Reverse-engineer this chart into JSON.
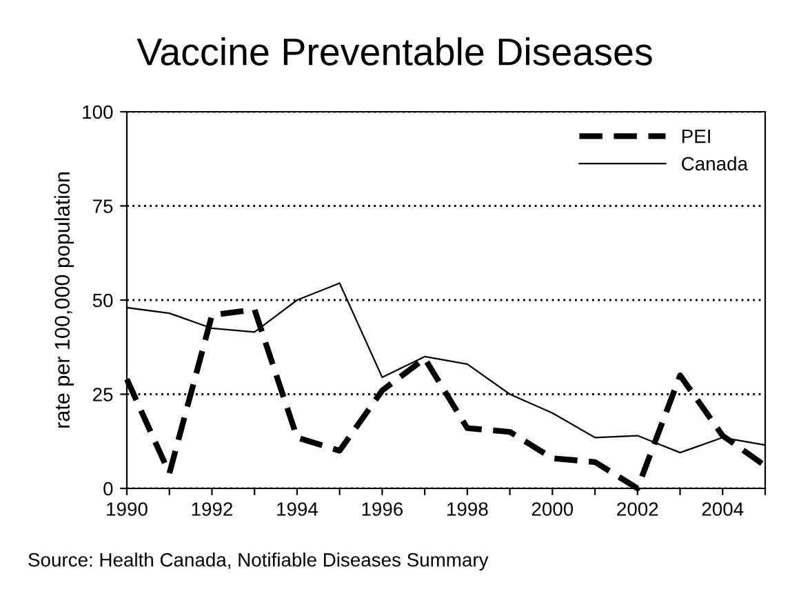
{
  "chart_data": {
    "type": "line",
    "title": "Vaccine Preventable Diseases",
    "ylabel": "rate per 100,000 population",
    "x": [
      1990,
      1991,
      1992,
      1993,
      1994,
      1995,
      1996,
      1997,
      1998,
      1999,
      2000,
      2001,
      2002,
      2003,
      2004,
      2005
    ],
    "series": [
      {
        "name": "PEI",
        "color": "#000000",
        "line_style": "dashed",
        "values": [
          29,
          4,
          46,
          47.5,
          13.5,
          10,
          26,
          34.5,
          16,
          15,
          8,
          7,
          0,
          30,
          14,
          6
        ]
      },
      {
        "name": "Canada",
        "color": "#000000",
        "line_style": "solid",
        "values": [
          48,
          46.5,
          42.5,
          41.5,
          50,
          54.5,
          29.5,
          35,
          33,
          25,
          20,
          13.5,
          14,
          9.5,
          13.5,
          11.5
        ]
      }
    ],
    "xlim": [
      1990,
      2005
    ],
    "ylim": [
      0,
      100
    ],
    "xticks": [
      1990,
      {
        "value": 1991,
        "label": null
      },
      1992,
      {
        "value": 1993,
        "label": null
      },
      1994,
      {
        "value": 1995,
        "label": null
      },
      1996,
      {
        "value": 1997,
        "label": null
      },
      1998,
      {
        "value": 1999,
        "label": null
      },
      2000,
      {
        "value": 2001,
        "label": null
      },
      2002,
      {
        "value": 2003,
        "label": null
      },
      2004,
      {
        "value": 2005,
        "label": null
      }
    ],
    "yticks": [
      0,
      25,
      50,
      75,
      100
    ],
    "grid": "y",
    "legend": "top right",
    "marker": "none",
    "annotations": [
      "Source: Health Canada, Notifiable Diseases Summary"
    ]
  }
}
